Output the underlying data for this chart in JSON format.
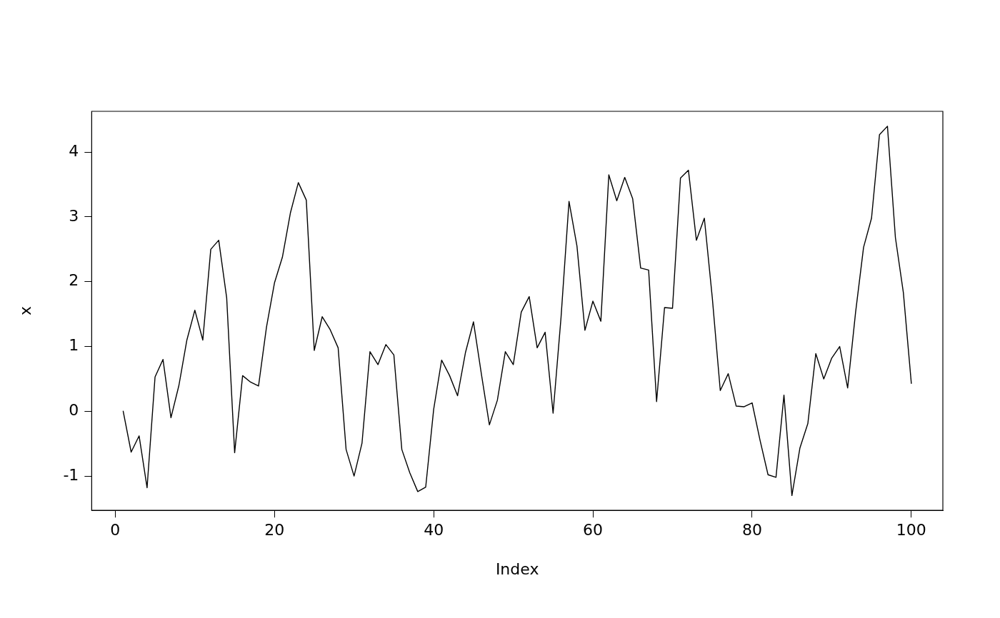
{
  "chart_data": {
    "type": "line",
    "xlabel": "Index",
    "ylabel": "x",
    "x": [
      1,
      2,
      3,
      4,
      5,
      6,
      7,
      8,
      9,
      10,
      11,
      12,
      13,
      14,
      15,
      16,
      17,
      18,
      19,
      20,
      21,
      22,
      23,
      24,
      25,
      26,
      27,
      28,
      29,
      30,
      31,
      32,
      33,
      34,
      35,
      36,
      37,
      38,
      39,
      40,
      41,
      42,
      43,
      44,
      45,
      46,
      47,
      48,
      49,
      50,
      51,
      52,
      53,
      54,
      55,
      56,
      57,
      58,
      59,
      60,
      61,
      62,
      63,
      64,
      65,
      66,
      67,
      68,
      69,
      70,
      71,
      72,
      73,
      74,
      75,
      76,
      77,
      78,
      79,
      80,
      81,
      82,
      83,
      84,
      85,
      86,
      87,
      88,
      89,
      90,
      91,
      92,
      93,
      94,
      95,
      96,
      97,
      98,
      99,
      100
    ],
    "series": [
      {
        "color": "#000000",
        "values": [
          0.0,
          -0.63,
          -0.38,
          -1.18,
          0.53,
          0.8,
          -0.1,
          0.4,
          1.1,
          1.56,
          1.1,
          2.5,
          2.64,
          1.75,
          -0.64,
          0.55,
          0.45,
          0.39,
          1.3,
          1.98,
          2.38,
          3.06,
          3.53,
          3.26,
          0.94,
          1.46,
          1.26,
          0.98,
          -0.59,
          -1.0,
          -0.49,
          0.92,
          0.72,
          1.03,
          0.87,
          -0.59,
          -0.95,
          -1.24,
          -1.17,
          0.03,
          0.79,
          0.55,
          0.24,
          0.91,
          1.38,
          0.57,
          -0.21,
          0.17,
          0.92,
          0.72,
          1.53,
          1.77,
          0.98,
          1.22,
          -0.03,
          1.45,
          3.24,
          2.55,
          1.25,
          1.7,
          1.39,
          3.65,
          3.25,
          3.61,
          3.28,
          2.21,
          2.18,
          0.15,
          1.6,
          1.59,
          3.6,
          3.72,
          2.64,
          2.98,
          1.75,
          0.32,
          0.58,
          0.08,
          0.07,
          0.13,
          -0.45,
          -0.98,
          -1.02,
          0.25,
          -1.3,
          -0.57,
          -0.19,
          0.89,
          0.5,
          0.82,
          1.0,
          0.36,
          1.53,
          2.53,
          2.98,
          4.27,
          4.4,
          2.68,
          1.83,
          0.43
        ]
      }
    ],
    "xlim": [
      -2.96,
      103.96
    ],
    "xticks": [
      0,
      20,
      40,
      60,
      80,
      100
    ],
    "ylim": [
      -1.53,
      4.63
    ],
    "yticks": [
      -1,
      0,
      1,
      2,
      3,
      4
    ],
    "grid": false,
    "legend": false,
    "marker": "none",
    "line_style": "solid"
  }
}
